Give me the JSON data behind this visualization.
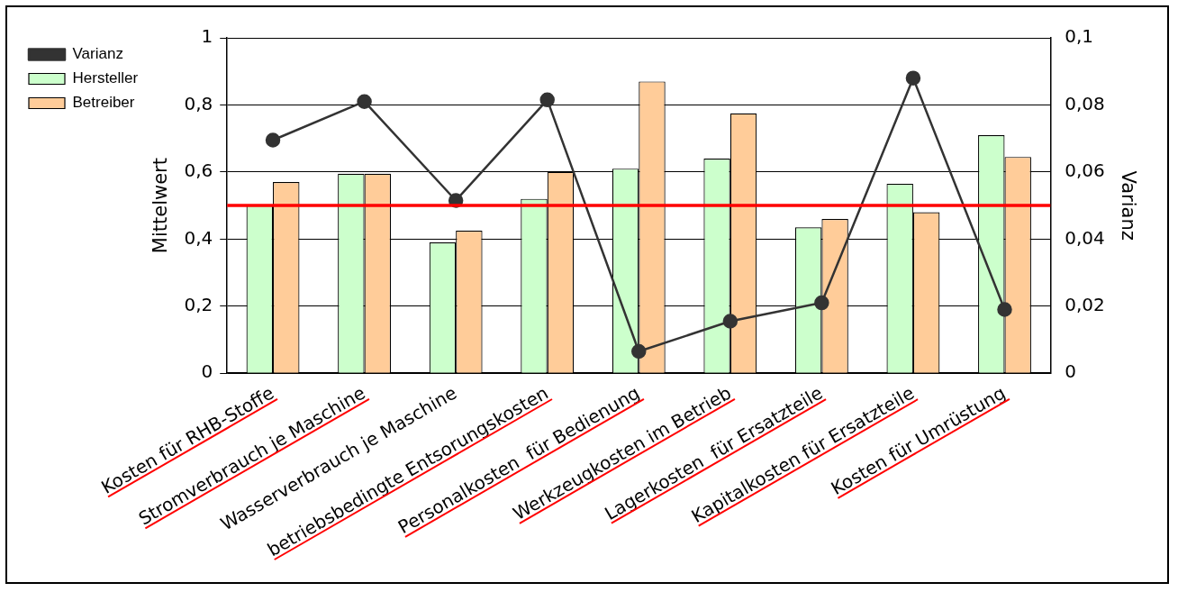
{
  "chart_data": {
    "type": "bar",
    "categories": [
      "Kosten für RHB-Stoffe",
      "Stromverbrauch je Maschine",
      "Wasserverbrauch je Maschine",
      "betriebsbedingte Entsorungskosten",
      "Personalkosten  für Bedienung",
      "Werkzeugkosten im Betrieb",
      "Lagerkosten  für Ersatzteile",
      "Kapitalkosten für Ersatzteile",
      "Kosten für Umrüstung"
    ],
    "series": [
      {
        "name": "Hersteller",
        "color": "#ccffcc",
        "values": [
          0.5,
          0.595,
          0.39,
          0.52,
          0.61,
          0.64,
          0.435,
          0.565,
          0.71
        ]
      },
      {
        "name": "Betreiber",
        "color": "#ffcc99",
        "values": [
          0.57,
          0.595,
          0.425,
          0.6,
          0.87,
          0.775,
          0.46,
          0.48,
          0.645
        ]
      },
      {
        "name": "Varianz",
        "type": "line",
        "axis": "y2",
        "color": "#333333",
        "marker": "circle",
        "values": [
          0.0695,
          0.081,
          0.0515,
          0.0815,
          0.0065,
          0.0155,
          0.021,
          0.088,
          0.019
        ]
      }
    ],
    "ylabel": "Mittelwert",
    "y2label": "Varianz",
    "ylim": [
      0,
      1
    ],
    "yticks": [
      0,
      {
        "value": 0.2,
        "label": "0,2"
      },
      {
        "value": 0.4,
        "label": "0,4"
      },
      {
        "value": 0.6,
        "label": "0,6"
      },
      {
        "value": 0.8,
        "label": "0,8"
      },
      1
    ],
    "y2lim": [
      0,
      0.1
    ],
    "y2ticks": [
      0,
      {
        "value": 0.02,
        "label": "0,02"
      },
      {
        "value": 0.04,
        "label": "0,04"
      },
      {
        "value": 0.06,
        "label": "0,06"
      },
      {
        "value": 0.08,
        "label": "0,08"
      },
      {
        "value": 0.1,
        "label": "0,1"
      }
    ],
    "ref_lines": [
      {
        "axis": "y",
        "value": 0.5,
        "color": "#ff0000"
      }
    ],
    "grid": "y",
    "legend": "top left"
  }
}
